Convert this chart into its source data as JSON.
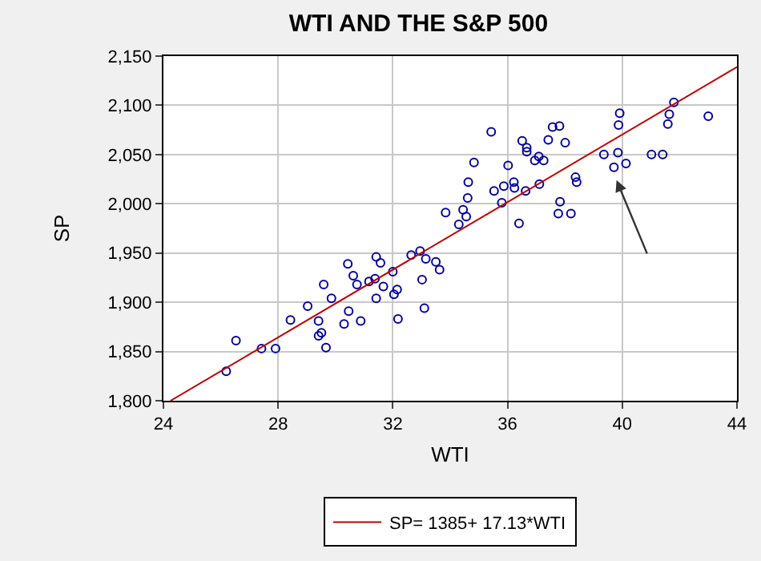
{
  "chart_data": {
    "type": "scatter",
    "title": "WTI AND THE S&P 500",
    "xlabel": "WTI",
    "ylabel": "SP",
    "xlim": [
      24,
      44
    ],
    "xticks": [
      24,
      28,
      32,
      36,
      40,
      44
    ],
    "ylim": [
      1800,
      2150
    ],
    "yticks": [
      {
        "value": 1800,
        "label": "1,800"
      },
      {
        "value": 1850,
        "label": "1,850"
      },
      {
        "value": 1900,
        "label": "1,900"
      },
      {
        "value": 1950,
        "label": "1,950"
      },
      {
        "value": 2000,
        "label": "2,000"
      },
      {
        "value": 2050,
        "label": "2,050"
      },
      {
        "value": 2100,
        "label": "2,100"
      },
      {
        "value": 2150,
        "label": "2,150"
      }
    ],
    "grid": true,
    "legend": "bottom",
    "series": [
      {
        "color": "#0000a0",
        "marker": "circle",
        "x": [
          26.19,
          26.53,
          27.42,
          27.91,
          28.43,
          29.03,
          29.41,
          29.41,
          29.51,
          29.67,
          29.59,
          29.86,
          30.43,
          30.46,
          30.3,
          30.62,
          30.75,
          30.88,
          31.17,
          31.38,
          31.42,
          31.57,
          31.42,
          31.67,
          32.0,
          32.15,
          32.04,
          32.18,
          32.64,
          32.95,
          33.15,
          33.02,
          33.1,
          33.5,
          33.63,
          33.84,
          34.3,
          34.45,
          34.56,
          34.61,
          34.63,
          34.83,
          35.43,
          35.53,
          35.8,
          35.87,
          36.02,
          36.24,
          36.22,
          36.4,
          36.51,
          36.67,
          36.67,
          36.63,
          36.95,
          37.09,
          37.26,
          37.11,
          37.42,
          37.57,
          37.81,
          38.01,
          38.37,
          38.41,
          37.83,
          37.77,
          38.21,
          39.36,
          39.71,
          39.85,
          39.87,
          39.91,
          40.13,
          41.02,
          41.41,
          41.59,
          41.64,
          41.8,
          43.0
        ],
        "values": [
          1830,
          1861,
          1853,
          1853,
          1882,
          1896,
          1881,
          1866,
          1869,
          1854,
          1918,
          1904,
          1939,
          1891,
          1878,
          1927,
          1918,
          1881,
          1921,
          1924,
          1946,
          1940,
          1904,
          1916,
          1931,
          1913,
          1908,
          1883,
          1948,
          1952,
          1944,
          1923,
          1894,
          1941,
          1933,
          1991,
          1979,
          1994,
          1987,
          2006,
          2022,
          2042,
          2073,
          2013,
          2001,
          2018,
          2039,
          2016,
          2022,
          1980,
          2064,
          2057,
          2053,
          2013,
          2044,
          2048,
          2044,
          2020,
          2065,
          2078,
          2079,
          2062,
          2027,
          2022,
          2002,
          1990,
          1990,
          2050,
          2037,
          2052,
          2080,
          2092,
          2041,
          2050,
          2050,
          2081,
          2091,
          2103,
          2089
        ]
      },
      {
        "type": "line",
        "name": "SP= 1385+ 17.13*WTI",
        "color": "#c00000",
        "marker": "none",
        "line_style": "solid",
        "x": [
          24.25,
          44
        ],
        "values": [
          1800,
          2139
        ]
      }
    ]
  }
}
